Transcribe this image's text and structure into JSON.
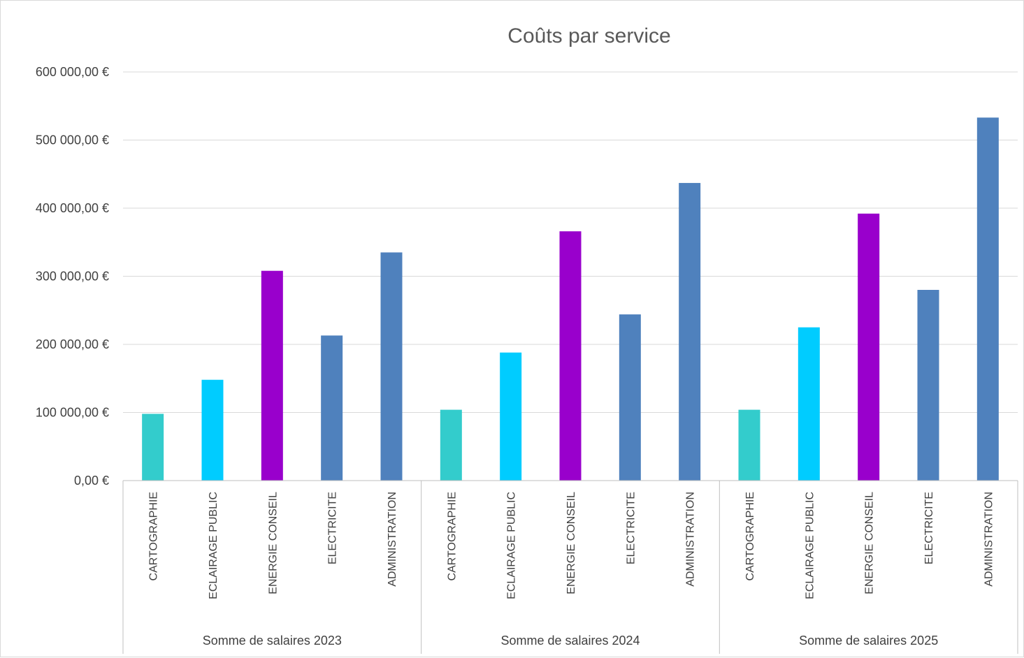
{
  "chart_data": {
    "type": "bar",
    "title": "Coûts par service",
    "ylim": [
      0,
      600000
    ],
    "y_ticks": [
      0,
      100000,
      200000,
      300000,
      400000,
      500000,
      600000
    ],
    "y_tick_labels": [
      "0,00 €",
      "100 000,00 €",
      "200 000,00 €",
      "300 000,00 €",
      "400 000,00 €",
      "500 000,00 €",
      "600 000,00 €"
    ],
    "grid": true,
    "legend": "none",
    "colors": {
      "CARTOGRAPHIE": "#33cccc",
      "ECLAIRAGE PUBLIC": "#00ccff",
      "ENERGIE CONSEIL": "#9900cc",
      "ELECTRICITE": "#4f81bd",
      "ADMINISTRATION": "#4f81bd"
    },
    "groups": [
      {
        "label": "Somme de salaires 2023",
        "categories": [
          "CARTOGRAPHIE",
          "ECLAIRAGE PUBLIC",
          "ENERGIE CONSEIL",
          "ELECTRICITE",
          "ADMINISTRATION"
        ],
        "values": [
          98000,
          148000,
          308000,
          213000,
          335000
        ]
      },
      {
        "label": "Somme de salaires 2024",
        "categories": [
          "CARTOGRAPHIE",
          "ECLAIRAGE PUBLIC",
          "ENERGIE CONSEIL",
          "ELECTRICITE",
          "ADMINISTRATION"
        ],
        "values": [
          104000,
          188000,
          366000,
          244000,
          437000
        ]
      },
      {
        "label": "Somme de salaires 2025",
        "categories": [
          "CARTOGRAPHIE",
          "ECLAIRAGE PUBLIC",
          "ENERGIE CONSEIL",
          "ELECTRICITE",
          "ADMINISTRATION"
        ],
        "values": [
          104000,
          225000,
          392000,
          280000,
          533000
        ]
      }
    ]
  }
}
